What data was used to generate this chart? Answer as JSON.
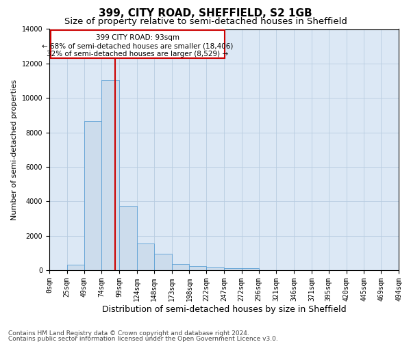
{
  "title": "399, CITY ROAD, SHEFFIELD, S2 1GB",
  "subtitle": "Size of property relative to semi-detached houses in Sheffield",
  "xlabel": "Distribution of semi-detached houses by size in Sheffield",
  "ylabel": "Number of semi-detached properties",
  "footnote1": "Contains HM Land Registry data © Crown copyright and database right 2024.",
  "footnote2": "Contains public sector information licensed under the Open Government Licence v3.0.",
  "annotation_line1": "399 CITY ROAD: 93sqm",
  "annotation_line2": "← 68% of semi-detached houses are smaller (18,406)",
  "annotation_line3": "32% of semi-detached houses are larger (8,529) →",
  "property_size": 93,
  "bin_edges": [
    0,
    25,
    49,
    74,
    99,
    124,
    148,
    173,
    198,
    222,
    247,
    272,
    296,
    321,
    346,
    371,
    395,
    420,
    445,
    469,
    494
  ],
  "bar_values": [
    0,
    300,
    8650,
    11050,
    3750,
    1550,
    950,
    350,
    220,
    150,
    100,
    100,
    0,
    0,
    0,
    0,
    0,
    0,
    0,
    0
  ],
  "bar_color": "#ccdcec",
  "bar_edge_color": "#5a9fd4",
  "vline_color": "#cc0000",
  "vline_x": 93,
  "ylim": [
    0,
    14000
  ],
  "yticks": [
    0,
    2000,
    4000,
    6000,
    8000,
    10000,
    12000,
    14000
  ],
  "xlim": [
    0,
    494
  ],
  "background_color": "#ffffff",
  "axes_facecolor": "#dce8f5",
  "grid_color": "#b8cce0",
  "annotation_box_edge_color": "#cc0000",
  "title_fontsize": 11,
  "subtitle_fontsize": 9.5,
  "xlabel_fontsize": 9,
  "ylabel_fontsize": 8,
  "tick_fontsize": 7,
  "annotation_fontsize": 7.5,
  "footnote_fontsize": 6.5
}
